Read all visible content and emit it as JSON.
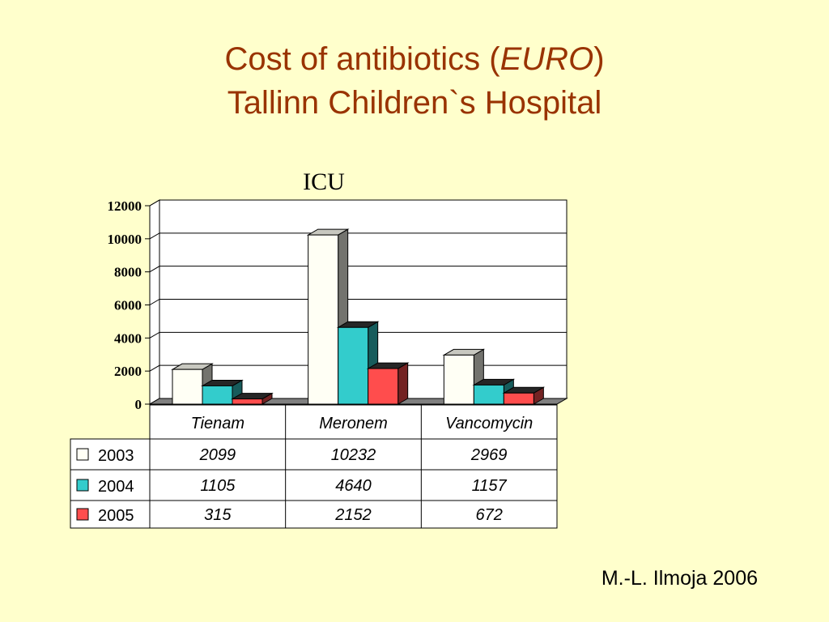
{
  "slide": {
    "title_pre": "Cost of antibiotics (",
    "title_italic": "EURO",
    "title_post": ")",
    "title_line2": "Tallinn Children`s Hospital",
    "credit": "M.-L. Ilmoja 2006"
  },
  "colors": {
    "background": "#FFFFCC",
    "title": "#993300",
    "series": [
      "#FFFFF5",
      "#33CCCC",
      "#FF4D4D"
    ]
  },
  "chart_data": {
    "type": "bar",
    "title": "ICU",
    "categories": [
      "Tienam",
      "Meronem",
      "Vancomycin"
    ],
    "series": [
      {
        "name": "2003",
        "values": [
          2099,
          10232,
          2969
        ]
      },
      {
        "name": "2004",
        "values": [
          1105,
          4640,
          1157
        ]
      },
      {
        "name": "2005",
        "values": [
          315,
          2152,
          672
        ]
      }
    ],
    "ylim": [
      0,
      12000
    ],
    "yticks": [
      0,
      2000,
      4000,
      6000,
      8000,
      10000,
      12000
    ],
    "grid": true,
    "style": "3d-clustered-column",
    "data_table": true
  }
}
